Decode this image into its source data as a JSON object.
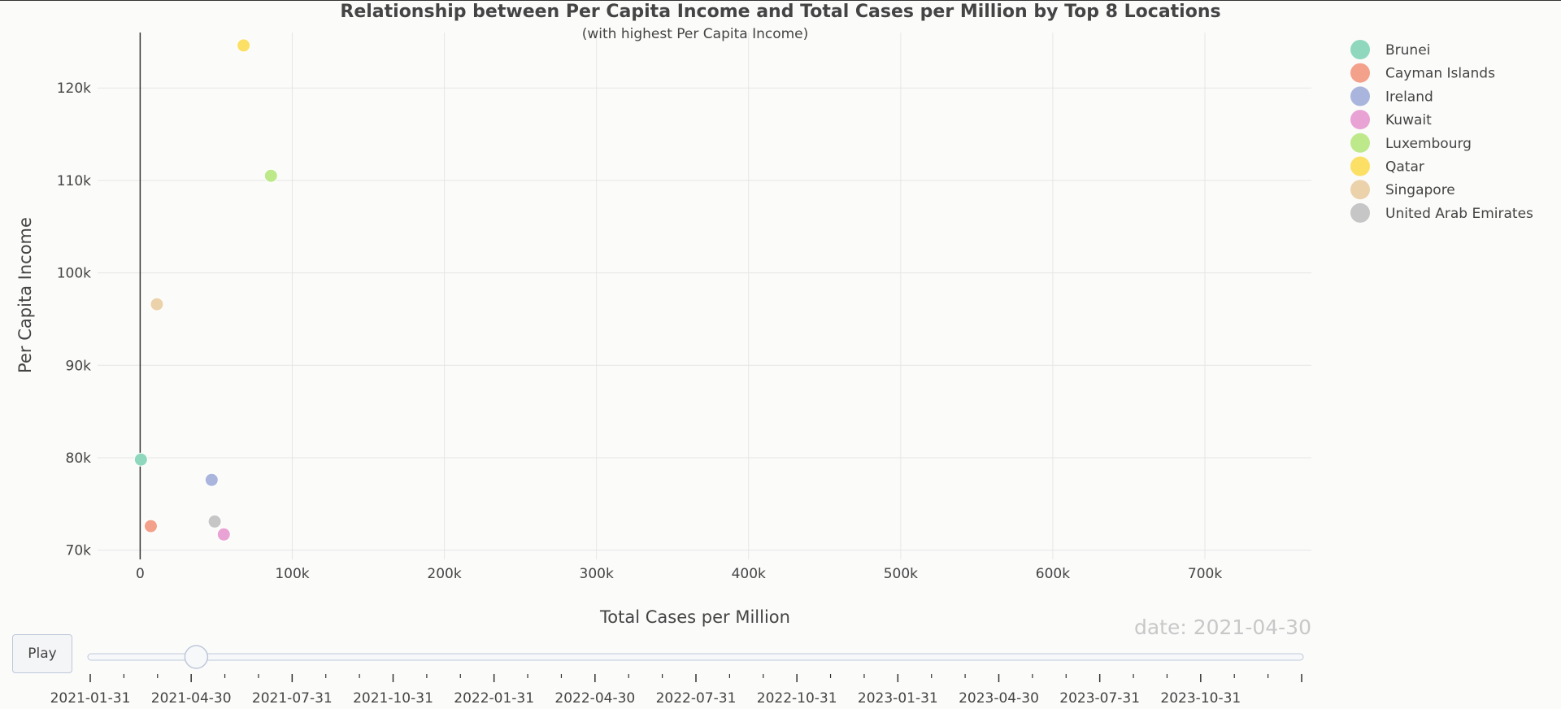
{
  "chart_data": {
    "type": "scatter",
    "title": "Relationship between Per Capita Income and Total Cases per Million by Top 8 Locations",
    "subtitle": "(with highest Per Capita Income)",
    "xlabel": "Total Cases per Million",
    "ylabel": "Per Capita Income",
    "xlim": [
      -28000,
      770000
    ],
    "ylim": [
      69000,
      126000
    ],
    "xticks": [
      0,
      100000,
      200000,
      300000,
      400000,
      500000,
      600000,
      700000
    ],
    "xtick_labels": [
      "0",
      "100k",
      "200k",
      "300k",
      "400k",
      "500k",
      "600k",
      "700k"
    ],
    "yticks": [
      70000,
      80000,
      90000,
      100000,
      110000,
      120000
    ],
    "ytick_labels": [
      "70k",
      "80k",
      "90k",
      "100k",
      "110k",
      "120k"
    ],
    "grid": true,
    "legend_position": "top-right",
    "series": [
      {
        "name": "Brunei",
        "color": "#8fd8bd",
        "x": 500,
        "y": 79800
      },
      {
        "name": "Cayman Islands",
        "color": "#f3a18a",
        "x": 7000,
        "y": 72600
      },
      {
        "name": "Ireland",
        "color": "#a9b5dc",
        "x": 47000,
        "y": 77600
      },
      {
        "name": "Kuwait",
        "color": "#e8a2d3",
        "x": 55000,
        "y": 71700
      },
      {
        "name": "Luxembourg",
        "color": "#bde98a",
        "x": 86000,
        "y": 110500
      },
      {
        "name": "Qatar",
        "color": "#fbe065",
        "x": 68000,
        "y": 124600
      },
      {
        "name": "Singapore",
        "color": "#ecd2aa",
        "x": 11000,
        "y": 96600
      },
      {
        "name": "United Arab Emirates",
        "color": "#c6c6c6",
        "x": 49000,
        "y": 73100
      }
    ]
  },
  "animation": {
    "date_label": "date: 2021-04-30",
    "play_label": "Play",
    "slider_value": 0.0875,
    "slider_major_labels": [
      "2021-01-31",
      "2021-04-30",
      "2021-07-31",
      "2021-10-31",
      "2022-01-31",
      "2022-04-30",
      "2022-07-31",
      "2022-10-31",
      "2023-01-31",
      "2023-04-30",
      "2023-07-31",
      "2023-10-31"
    ]
  }
}
